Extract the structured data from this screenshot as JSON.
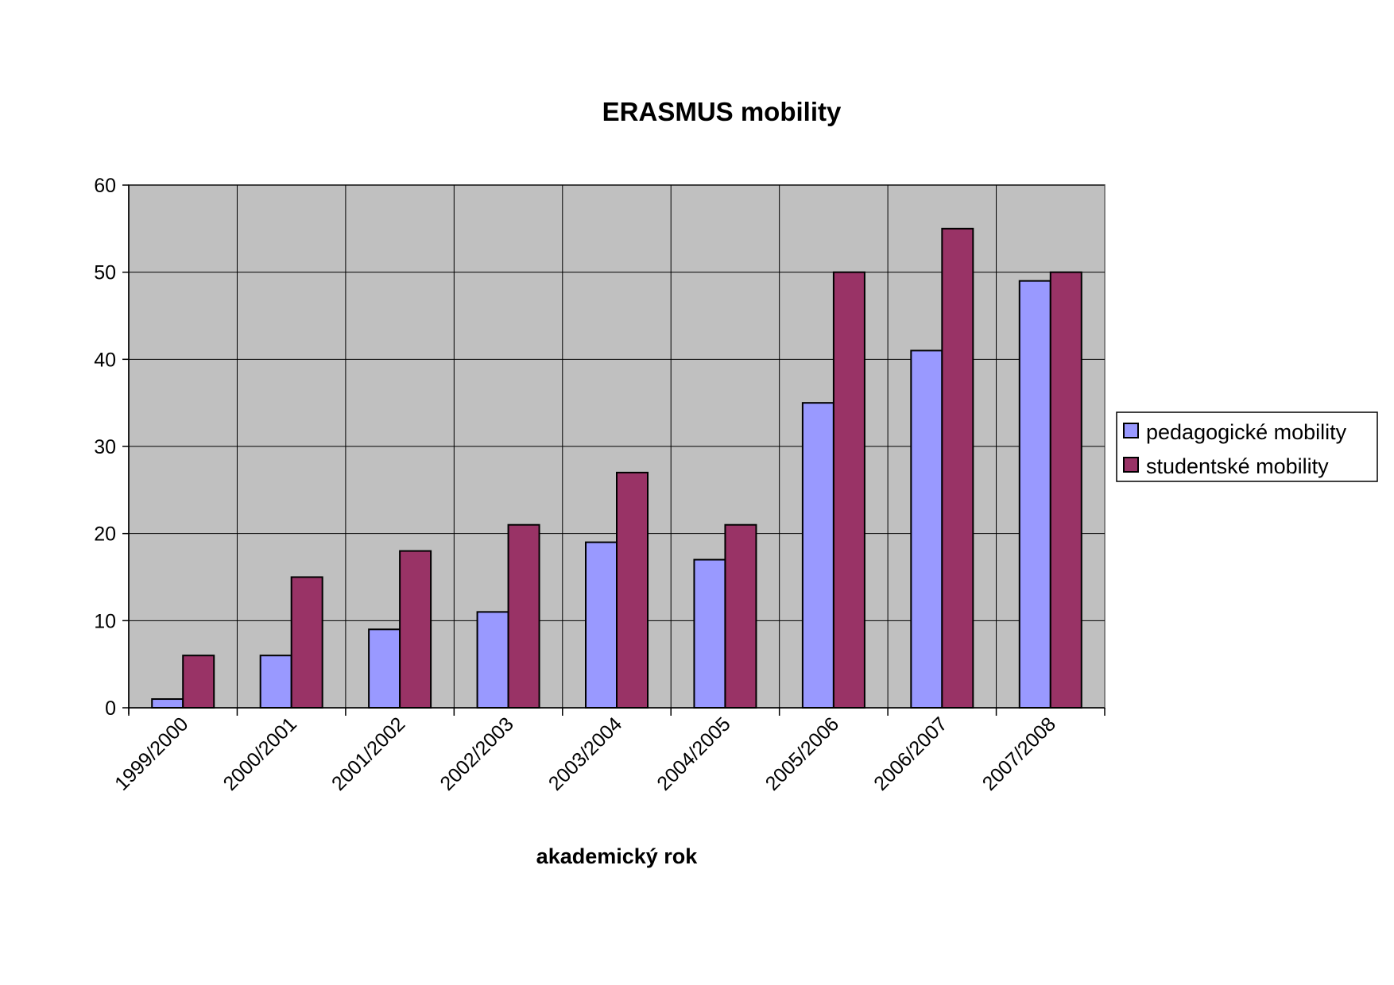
{
  "chart_data": {
    "type": "bar",
    "title": "ERASMUS mobility",
    "xlabel": "akademický rok",
    "ylabel": "",
    "ylim": [
      0,
      60
    ],
    "yticks": [
      0,
      10,
      20,
      30,
      40,
      50,
      60
    ],
    "categories": [
      "1999/2000",
      "2000/2001",
      "2001/2002",
      "2002/2003",
      "2003/2004",
      "2004/2005",
      "2005/2006",
      "2006/2007",
      "2007/2008"
    ],
    "series": [
      {
        "name": "pedagogické mobility",
        "color": "#9999ff",
        "values": [
          1,
          6,
          9,
          11,
          19,
          17,
          35,
          41,
          49
        ]
      },
      {
        "name": "studentské mobility",
        "color": "#993366",
        "values": [
          6,
          15,
          18,
          21,
          27,
          21,
          50,
          55,
          50
        ]
      }
    ],
    "grid": true,
    "plot_background": "#c0c0c0",
    "legend_position": "right"
  }
}
